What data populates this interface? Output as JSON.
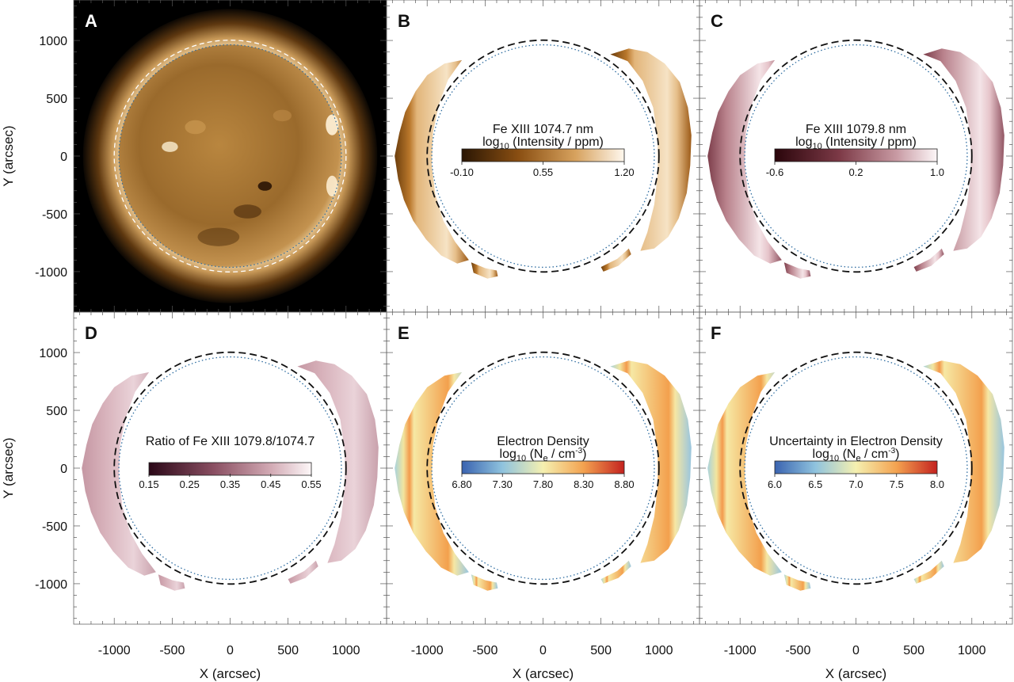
{
  "figure": {
    "panels": [
      {
        "letter": "A",
        "kind": "euv",
        "colorbar": null
      },
      {
        "letter": "B",
        "kind": "corona",
        "cmap": "copper",
        "colorbar": {
          "line1": "Fe XIII 1074.7 nm",
          "line2_prefix": "log",
          "line2_sub": "10",
          "line2_suffix": " (Intensity / ppm)",
          "ticks": [
            "-0.10",
            "0.55",
            "1.20"
          ]
        }
      },
      {
        "letter": "C",
        "kind": "corona",
        "cmap": "maroon",
        "colorbar": {
          "line1": "Fe XIII 1079.8 nm",
          "line2_prefix": "log",
          "line2_sub": "10",
          "line2_suffix": " (Intensity / ppm)",
          "ticks": [
            "-0.6",
            "0.2",
            "1.0"
          ]
        }
      },
      {
        "letter": "D",
        "kind": "corona",
        "cmap": "mauve",
        "colorbar": {
          "line1": "Ratio of Fe XIII 1079.8/1074.7",
          "line2_prefix": "",
          "line2_sub": "",
          "line2_suffix": "",
          "ticks": [
            "0.15",
            "0.25",
            "0.35",
            "0.45",
            "0.55"
          ]
        }
      },
      {
        "letter": "E",
        "kind": "corona",
        "cmap": "spectral",
        "colorbar": {
          "line1": "Electron Density",
          "line2_prefix": "log",
          "line2_sub": "10",
          "line2_suffix": " (N",
          "line2_sub2": "e",
          "line2_end": " / cm",
          "line2_sup": "-3",
          "line2_close": ")",
          "ticks": [
            "6.80",
            "7.30",
            "7.80",
            "8.30",
            "8.80"
          ]
        }
      },
      {
        "letter": "F",
        "kind": "corona",
        "cmap": "spectral",
        "colorbar": {
          "line1": "Uncertainty in Electron Density",
          "line2_prefix": "log",
          "line2_sub": "10",
          "line2_suffix": " (N",
          "line2_sub2": "e",
          "line2_end": " / cm",
          "line2_sup": "-3",
          "line2_close": ")",
          "ticks": [
            "6.0",
            "6.5",
            "7.0",
            "7.5",
            "8.0"
          ]
        }
      }
    ],
    "x_axis": {
      "title": "X (arcsec)",
      "ticks": [
        -1000,
        -500,
        0,
        500,
        1000
      ],
      "range": [
        -1350,
        1350
      ]
    },
    "y_axis": {
      "title": "Y (arcsec)",
      "ticks": [
        1000,
        500,
        0,
        -500,
        -1000
      ],
      "range": [
        -1350,
        1350
      ]
    },
    "colors": {
      "copper_dark": "#3a2206",
      "copper_mid": "#a9661d",
      "copper_light": "#fbf2e2",
      "maroon_dark": "#2a070d",
      "maroon_mid": "#9a5a66",
      "maroon_light": "#fbf4f5",
      "mauve_dark": "#2c0a18",
      "mauve_mid": "#b98794",
      "mauve_light": "#fbf3f5",
      "spectral_low": "#3a6fb5",
      "spectral_mid": "#f7efa8",
      "spectral_high": "#c82a21",
      "limb_dot": "#2d6ca0"
    }
  }
}
